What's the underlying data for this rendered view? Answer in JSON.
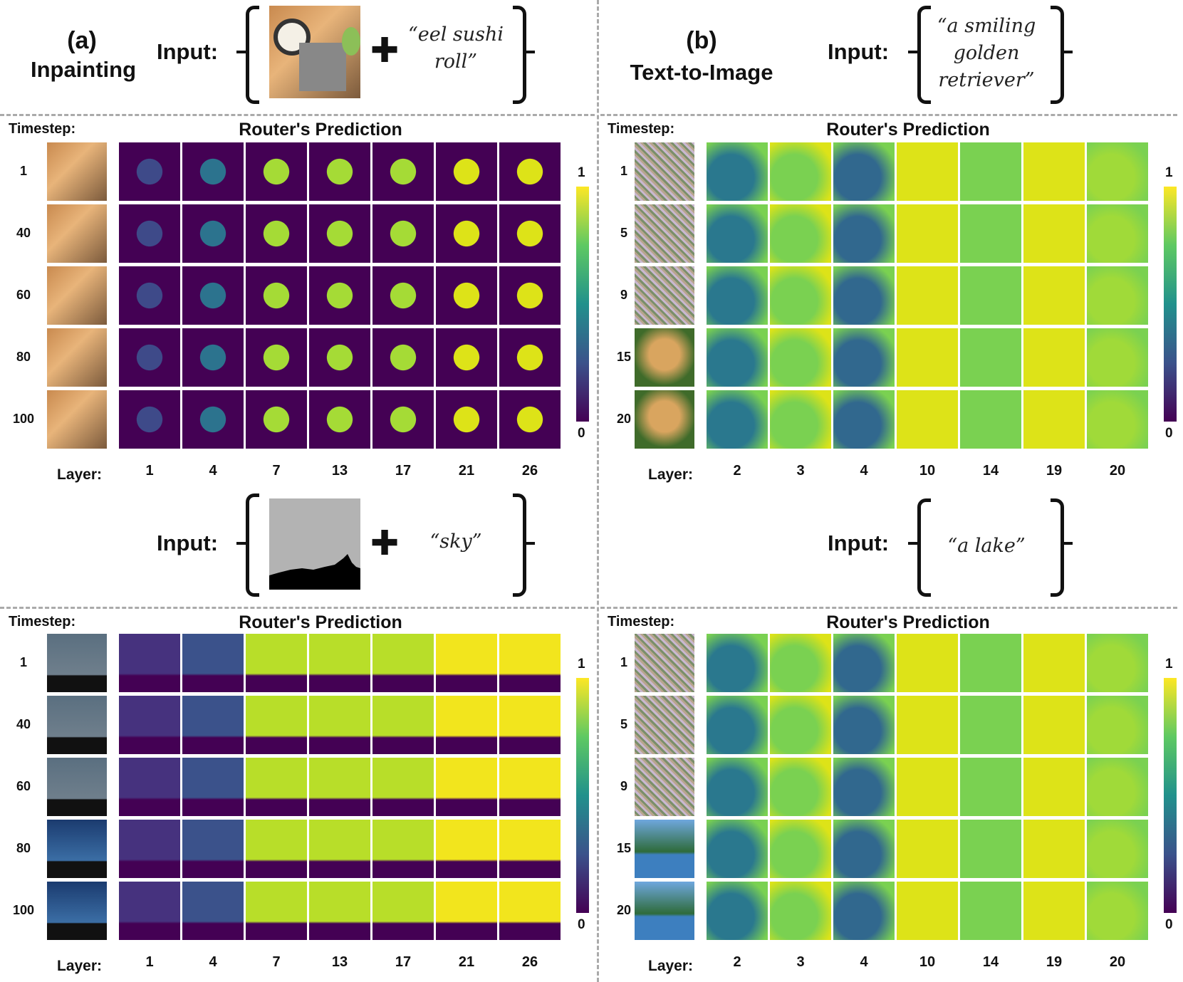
{
  "colors": {
    "viridis_low": "#440154",
    "viridis_mid": "#21918c",
    "viridis_high": "#fde725",
    "divider": "#aaaaaa"
  },
  "panel_a": {
    "letter": "(a)",
    "name": "Inpainting",
    "input_label": "Input:",
    "prompt1": "“eel sushi roll”",
    "prompt2": "“sky”",
    "timestep_label": "Timestep:",
    "router_title": "Router's Prediction",
    "layer_label": "Layer:",
    "timesteps": [
      "1",
      "40",
      "60",
      "80",
      "100"
    ],
    "layers": [
      "1",
      "4",
      "7",
      "13",
      "17",
      "21",
      "26"
    ],
    "cbar_max": "1",
    "cbar_min": "0",
    "plus_icon": "plus-icon"
  },
  "panel_b": {
    "letter": "(b)",
    "name": "Text-to-Image",
    "input_label": "Input:",
    "prompt1": "“a smiling golden retriever”",
    "prompt2": "“a lake”",
    "timestep_label": "Timestep:",
    "router_title": "Router's Prediction",
    "layer_label": "Layer:",
    "timesteps": [
      "1",
      "5",
      "9",
      "15",
      "20"
    ],
    "layers": [
      "2",
      "3",
      "4",
      "10",
      "14",
      "19",
      "20"
    ],
    "cbar_max": "1",
    "cbar_min": "0"
  }
}
